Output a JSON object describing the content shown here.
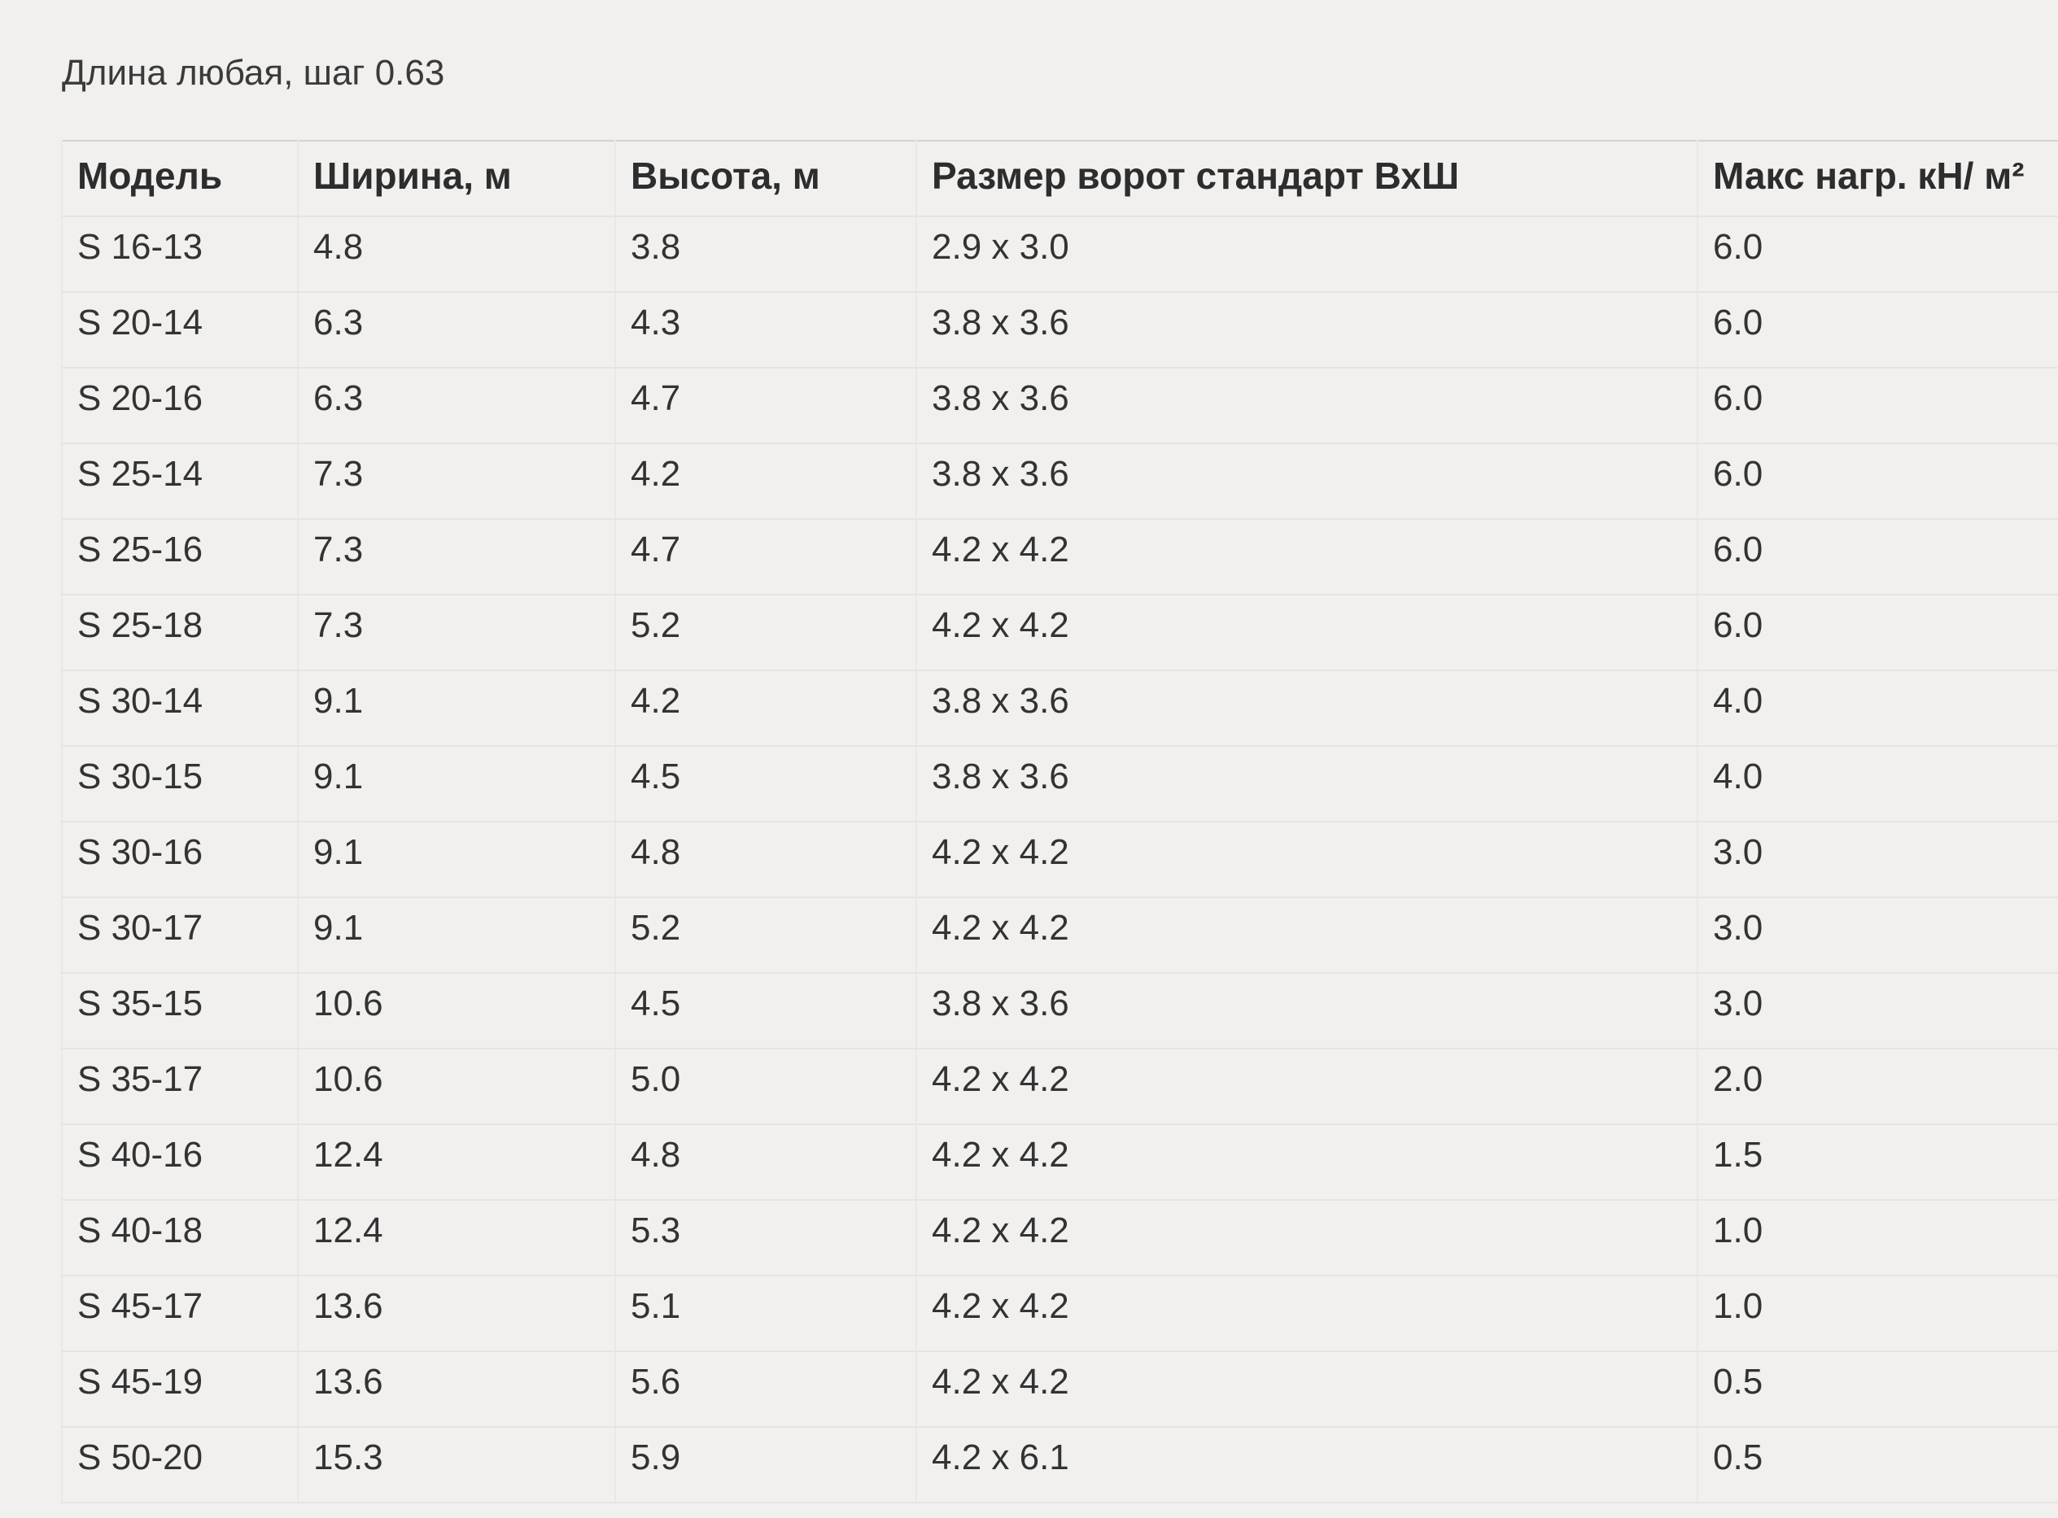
{
  "note": {
    "text": "Длина любая, шаг 0.63"
  },
  "table": {
    "columns": [
      {
        "key": "model",
        "label": "Модель"
      },
      {
        "key": "width",
        "label": "Ширина, м"
      },
      {
        "key": "height",
        "label": "Высота, м"
      },
      {
        "key": "gate",
        "label": "Размер ворот стандарт ВхШ"
      },
      {
        "key": "max-load",
        "label": "Макс нагр. кН/ м²"
      }
    ],
    "rows": [
      [
        "S 16-13",
        "4.8",
        "3.8",
        "2.9 x 3.0",
        "6.0"
      ],
      [
        "S 20-14",
        "6.3",
        "4.3",
        "3.8 x 3.6",
        "6.0"
      ],
      [
        "S 20-16",
        "6.3",
        "4.7",
        "3.8 x 3.6",
        "6.0"
      ],
      [
        "S 25-14",
        "7.3",
        "4.2",
        "3.8 x 3.6",
        "6.0"
      ],
      [
        "S 25-16",
        "7.3",
        "4.7",
        "4.2 x 4.2",
        "6.0"
      ],
      [
        "S 25-18",
        "7.3",
        "5.2",
        "4.2 x 4.2",
        "6.0"
      ],
      [
        "S 30-14",
        "9.1",
        "4.2",
        "3.8 x 3.6",
        "4.0"
      ],
      [
        "S 30-15",
        "9.1",
        "4.5",
        "3.8 x 3.6",
        "4.0"
      ],
      [
        "S 30-16",
        "9.1",
        "4.8",
        "4.2 x 4.2",
        "3.0"
      ],
      [
        "S 30-17",
        "9.1",
        "5.2",
        "4.2 x 4.2",
        "3.0"
      ],
      [
        "S 35-15",
        "10.6",
        "4.5",
        "3.8 x 3.6",
        "3.0"
      ],
      [
        "S 35-17",
        "10.6",
        "5.0",
        "4.2 x 4.2",
        "2.0"
      ],
      [
        "S 40-16",
        "12.4",
        "4.8",
        "4.2 x 4.2",
        "1.5"
      ],
      [
        "S 40-18",
        "12.4",
        "5.3",
        "4.2 x 4.2",
        "1.0"
      ],
      [
        "S 45-17",
        "13.6",
        "5.1",
        "4.2 x 4.2",
        "1.0"
      ],
      [
        "S 45-19",
        "13.6",
        "5.6",
        "4.2 x 4.2",
        "0.5"
      ],
      [
        "S 50-20",
        "15.3",
        "5.9",
        "4.2 x 6.1",
        "0.5"
      ]
    ]
  },
  "colors": {
    "page_background": "#f1f0ee",
    "table_top_border": "#d4d2d0",
    "grid_line": "#e6e4e1",
    "text": "#333333"
  }
}
